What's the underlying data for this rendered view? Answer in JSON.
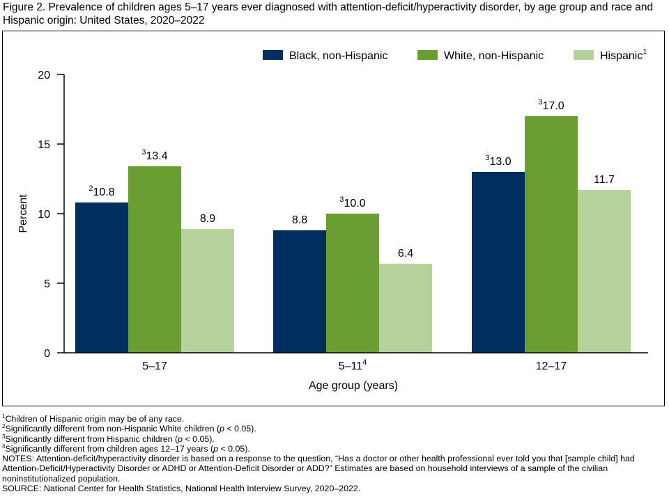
{
  "title": "Figure 2. Prevalence of children ages 5–17 years ever diagnosed with attention-deficit/hyperactivity disorder, by age group and race and Hispanic origin: United States, 2020–2022",
  "colors": {
    "black_nh": "#002f5f",
    "white_nh": "#6b9e32",
    "hispanic": "#b5d29a"
  },
  "chart_data": {
    "type": "bar",
    "title": "",
    "xlabel": "Age group (years)",
    "ylabel": "Percent",
    "ylim": [
      0,
      20
    ],
    "yticks": [
      0,
      5,
      10,
      15,
      20
    ],
    "grid": false,
    "legend_position": "top",
    "categories": [
      {
        "label": "5–17",
        "sup": ""
      },
      {
        "label": "5–11",
        "sup": "4"
      },
      {
        "label": "12–17",
        "sup": ""
      }
    ],
    "series": [
      {
        "name": "Black, non-Hispanic",
        "name_sup": "",
        "color": "#002f5f",
        "values": [
          10.8,
          8.8,
          13.0
        ],
        "value_labels": [
          "10.8",
          "8.8",
          "13.0"
        ],
        "label_sups": [
          "2",
          "",
          "3"
        ]
      },
      {
        "name": "White, non-Hispanic",
        "name_sup": "",
        "color": "#6b9e32",
        "values": [
          13.4,
          10.0,
          17.0
        ],
        "value_labels": [
          "13.4",
          "10.0",
          "17.0"
        ],
        "label_sups": [
          "3",
          "3",
          "3"
        ]
      },
      {
        "name": "Hispanic",
        "name_sup": "1",
        "color": "#b5d29a",
        "values": [
          8.9,
          6.4,
          11.7
        ],
        "value_labels": [
          "8.9",
          "6.4",
          "11.7"
        ],
        "label_sups": [
          "",
          "",
          ""
        ]
      }
    ]
  },
  "footnotes": {
    "fn1": {
      "sup": "1",
      "text": "Children of Hispanic origin may be of any race."
    },
    "fn2": {
      "sup": "2",
      "pre": "Significantly different from non-Hispanic White children (",
      "p": "p",
      "post": " < 0.05)."
    },
    "fn3": {
      "sup": "3",
      "pre": "Significantly different from Hispanic children (",
      "p": "p",
      "post": " < 0.05)."
    },
    "fn4": {
      "sup": "4",
      "pre": "Significantly different from children ages 12–17 years (",
      "p": "p",
      "post": " < 0.05)."
    },
    "notes": "NOTES: Attention-deficit/hyperactivity disorder is based on a response to the question, “Has a doctor or other health professional ever told you that [sample child] had Attention-Deficit/Hyperactivity Disorder or ADHD or Attention-Deficit Disorder or ADD?” Estimates are based on household interviews of a sample of the civilian noninstitutionalized population.",
    "source": "SOURCE: National Center for Health Statistics, National Health Interview Survey, 2020–2022."
  }
}
